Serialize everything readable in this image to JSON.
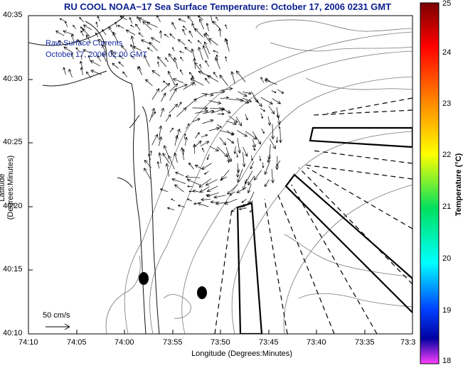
{
  "title": "RU COOL  NOAA−17  Sea Surface Temperature:  October 17, 2006 0231 GMT",
  "legend": {
    "line1": "Raw Surface Currents",
    "line2": "October 17, 2006 02:00 GMT"
  },
  "axes": {
    "xlabel": "Longitude (Degrees:Minutes)",
    "ylabel": "Latitude (Degrees:Minutes)",
    "x_ticks": [
      "74:10",
      "74:05",
      "74:00",
      "73:55",
      "73:50",
      "73:45",
      "73:40",
      "73:35",
      "73:3"
    ],
    "y_ticks": [
      "40:35",
      "40:30",
      "40:25",
      "40:20",
      "40:15",
      "40:10"
    ]
  },
  "colorbar": {
    "label": "Temperature (°C)",
    "ticks": [
      "25",
      "24",
      "23",
      "22",
      "21",
      "20",
      "19",
      "18"
    ],
    "colors": [
      "#7a0000",
      "#ff0000",
      "#ff8c00",
      "#ffff00",
      "#00e060",
      "#00ffff",
      "#0040ff",
      "#0000a0",
      "#ff40ff"
    ]
  },
  "scale": {
    "label": "50 cm/s"
  }
}
